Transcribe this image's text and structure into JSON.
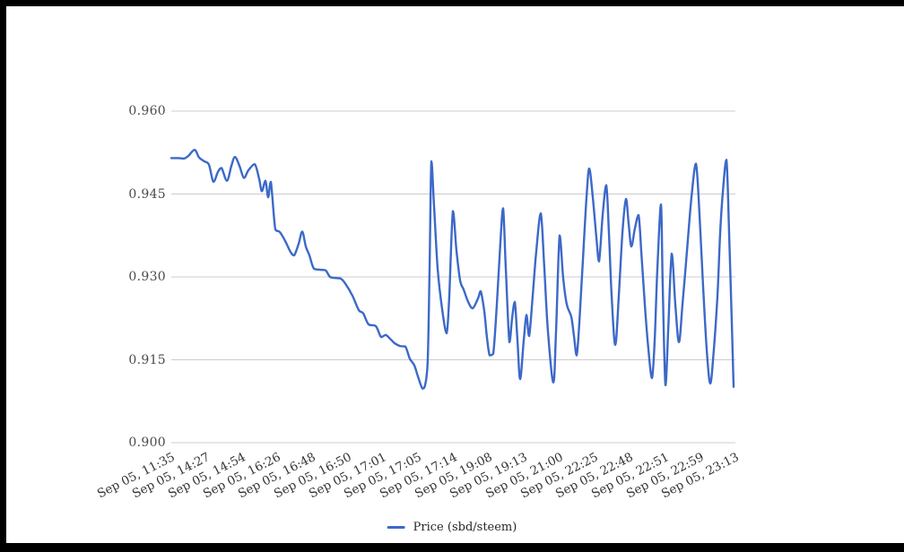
{
  "frame": {
    "border_color": "#000000",
    "page_background": "#ffffff"
  },
  "chart_data": {
    "type": "line",
    "title": "",
    "legend": {
      "position": "bottom",
      "label": "Price (sbd/steem)"
    },
    "y_axis": {
      "range": [
        0.9,
        0.96
      ],
      "tick_values": [
        0.96,
        0.945,
        0.93,
        0.915,
        0.9
      ],
      "tick_labels": [
        "0.960",
        "0.945",
        "0.930",
        "0.915",
        "0.900"
      ],
      "grid": true,
      "gridline_color": "#cccccc",
      "label_color": "#4a4a4a"
    },
    "x_axis": {
      "tick_labels": [
        "Sep 05, 11:35",
        "Sep 05, 14:27",
        "Sep 05, 14:54",
        "Sep 05, 16:26",
        "Sep 05, 16:48",
        "Sep 05, 16:50",
        "Sep 05, 17:01",
        "Sep 05, 17:05",
        "Sep 05, 17:14",
        "Sep 05, 19:08",
        "Sep 05, 19:13",
        "Sep 05, 21:00",
        "Sep 05, 22:25",
        "Sep 05, 22:48",
        "Sep 05, 22:51",
        "Sep 05, 22:59",
        "Sep 05, 23:13"
      ],
      "label_rotation_deg": -27,
      "label_color": "#333333"
    },
    "series": [
      {
        "name": "Price (sbd/steem)",
        "color": "#3c69c8",
        "points": [
          [
            0.0,
            0.9515
          ],
          [
            0.0127,
            0.9515
          ],
          [
            0.0223,
            0.9514
          ],
          [
            0.0302,
            0.9519
          ],
          [
            0.0413,
            0.953
          ],
          [
            0.0493,
            0.9516
          ],
          [
            0.0588,
            0.9509
          ],
          [
            0.0668,
            0.9503
          ],
          [
            0.0747,
            0.9472
          ],
          [
            0.0827,
            0.949
          ],
          [
            0.089,
            0.9497
          ],
          [
            0.0986,
            0.9474
          ],
          [
            0.1065,
            0.9501
          ],
          [
            0.1129,
            0.9517
          ],
          [
            0.1208,
            0.9501
          ],
          [
            0.1288,
            0.9479
          ],
          [
            0.1367,
            0.9493
          ],
          [
            0.1479,
            0.9504
          ],
          [
            0.1558,
            0.9477
          ],
          [
            0.1606,
            0.9455
          ],
          [
            0.1669,
            0.9474
          ],
          [
            0.1717,
            0.9444
          ],
          [
            0.1765,
            0.9472
          ],
          [
            0.1844,
            0.9386
          ],
          [
            0.1924,
            0.9381
          ],
          [
            0.2019,
            0.9365
          ],
          [
            0.2115,
            0.9345
          ],
          [
            0.2178,
            0.9339
          ],
          [
            0.2258,
            0.936
          ],
          [
            0.2321,
            0.9382
          ],
          [
            0.2385,
            0.9355
          ],
          [
            0.2448,
            0.9339
          ],
          [
            0.2528,
            0.9315
          ],
          [
            0.2639,
            0.9313
          ],
          [
            0.2735,
            0.9312
          ],
          [
            0.2814,
            0.93
          ],
          [
            0.2909,
            0.9298
          ],
          [
            0.3005,
            0.9297
          ],
          [
            0.3084,
            0.9288
          ],
          [
            0.3212,
            0.9266
          ],
          [
            0.3323,
            0.924
          ],
          [
            0.3402,
            0.9234
          ],
          [
            0.3498,
            0.9214
          ],
          [
            0.3625,
            0.9211
          ],
          [
            0.372,
            0.9191
          ],
          [
            0.38,
            0.9195
          ],
          [
            0.3879,
            0.9188
          ],
          [
            0.3959,
            0.918
          ],
          [
            0.4054,
            0.9175
          ],
          [
            0.4149,
            0.9174
          ],
          [
            0.4229,
            0.9152
          ],
          [
            0.4308,
            0.914
          ],
          [
            0.4372,
            0.912
          ],
          [
            0.4451,
            0.9098
          ],
          [
            0.4499,
            0.9104
          ],
          [
            0.4547,
            0.9152
          ],
          [
            0.4579,
            0.9315
          ],
          [
            0.4611,
            0.9509
          ],
          [
            0.4658,
            0.9428
          ],
          [
            0.4722,
            0.9315
          ],
          [
            0.4801,
            0.9242
          ],
          [
            0.4881,
            0.9198
          ],
          [
            0.4928,
            0.9266
          ],
          [
            0.4992,
            0.9419
          ],
          [
            0.5056,
            0.9347
          ],
          [
            0.5119,
            0.9294
          ],
          [
            0.5183,
            0.9277
          ],
          [
            0.5262,
            0.9255
          ],
          [
            0.5342,
            0.9243
          ],
          [
            0.5437,
            0.9261
          ],
          [
            0.5485,
            0.9274
          ],
          [
            0.5548,
            0.9238
          ],
          [
            0.5596,
            0.919
          ],
          [
            0.5644,
            0.9158
          ],
          [
            0.5707,
            0.9161
          ],
          [
            0.5771,
            0.925
          ],
          [
            0.5834,
            0.9363
          ],
          [
            0.5882,
            0.9424
          ],
          [
            0.593,
            0.9315
          ],
          [
            0.5993,
            0.9182
          ],
          [
            0.6041,
            0.9225
          ],
          [
            0.6089,
            0.9255
          ],
          [
            0.6136,
            0.9185
          ],
          [
            0.6184,
            0.9115
          ],
          [
            0.6248,
            0.9185
          ],
          [
            0.6295,
            0.9231
          ],
          [
            0.6343,
            0.9193
          ],
          [
            0.6407,
            0.9266
          ],
          [
            0.647,
            0.9347
          ],
          [
            0.655,
            0.9415
          ],
          [
            0.6613,
            0.9315
          ],
          [
            0.6677,
            0.9201
          ],
          [
            0.6772,
            0.9109
          ],
          [
            0.682,
            0.9201
          ],
          [
            0.6884,
            0.9375
          ],
          [
            0.6947,
            0.9298
          ],
          [
            0.7011,
            0.925
          ],
          [
            0.709,
            0.9228
          ],
          [
            0.7138,
            0.9193
          ],
          [
            0.7186,
            0.9158
          ],
          [
            0.7233,
            0.9217
          ],
          [
            0.7297,
            0.9331
          ],
          [
            0.7361,
            0.9444
          ],
          [
            0.7409,
            0.9496
          ],
          [
            0.7472,
            0.9444
          ],
          [
            0.7536,
            0.9371
          ],
          [
            0.7583,
            0.9328
          ],
          [
            0.7647,
            0.9412
          ],
          [
            0.7711,
            0.9466
          ],
          [
            0.7758,
            0.9379
          ],
          [
            0.7806,
            0.9266
          ],
          [
            0.787,
            0.9177
          ],
          [
            0.7933,
            0.9266
          ],
          [
            0.7997,
            0.9379
          ],
          [
            0.806,
            0.9441
          ],
          [
            0.8108,
            0.9396
          ],
          [
            0.8156,
            0.9355
          ],
          [
            0.8219,
            0.9388
          ],
          [
            0.8283,
            0.9412
          ],
          [
            0.8331,
            0.9347
          ],
          [
            0.8394,
            0.925
          ],
          [
            0.8458,
            0.9169
          ],
          [
            0.8521,
            0.9117
          ],
          [
            0.8569,
            0.9185
          ],
          [
            0.8617,
            0.9315
          ],
          [
            0.868,
            0.9431
          ],
          [
            0.8712,
            0.9282
          ],
          [
            0.876,
            0.9104
          ],
          [
            0.8808,
            0.9201
          ],
          [
            0.8871,
            0.9342
          ],
          [
            0.8935,
            0.925
          ],
          [
            0.8999,
            0.9182
          ],
          [
            0.9062,
            0.925
          ],
          [
            0.9142,
            0.9347
          ],
          [
            0.9221,
            0.9444
          ],
          [
            0.9301,
            0.9505
          ],
          [
            0.9364,
            0.9412
          ],
          [
            0.9428,
            0.9282
          ],
          [
            0.9491,
            0.9169
          ],
          [
            0.9555,
            0.9107
          ],
          [
            0.9618,
            0.9169
          ],
          [
            0.9682,
            0.9266
          ],
          [
            0.973,
            0.9379
          ],
          [
            0.9777,
            0.9453
          ],
          [
            0.9841,
            0.9512
          ],
          [
            0.9889,
            0.9379
          ],
          [
            0.9936,
            0.9217
          ],
          [
            0.9968,
            0.9101
          ]
        ]
      }
    ]
  }
}
